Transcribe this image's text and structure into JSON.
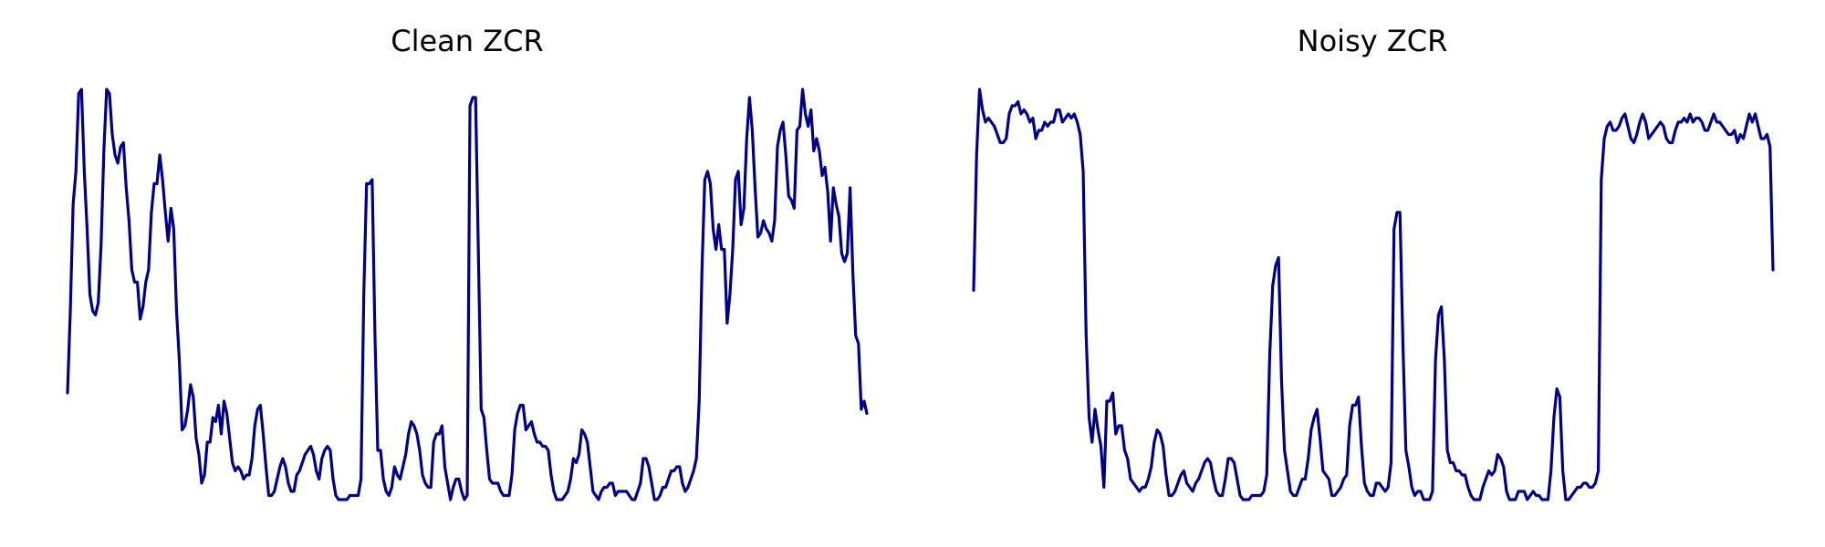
{
  "chart_data": [
    {
      "type": "line",
      "title": "Clean ZCR",
      "xlabel": "",
      "ylabel": "",
      "grid": false,
      "axes_visible": false,
      "line_color": "#00008b",
      "ylim": [
        0.0,
        1.0
      ],
      "series": [
        {
          "values": [
            0.26,
            0.46,
            0.72,
            0.8,
            0.99,
            1.0,
            0.8,
            0.66,
            0.5,
            0.46,
            0.45,
            0.48,
            0.62,
            0.85,
            1.0,
            0.99,
            0.89,
            0.84,
            0.82,
            0.86,
            0.87,
            0.76,
            0.68,
            0.56,
            0.53,
            0.53,
            0.44,
            0.47,
            0.53,
            0.56,
            0.7,
            0.77,
            0.77,
            0.84,
            0.78,
            0.7,
            0.63,
            0.71,
            0.66,
            0.46,
            0.34,
            0.17,
            0.18,
            0.22,
            0.28,
            0.25,
            0.15,
            0.11,
            0.04,
            0.06,
            0.14,
            0.14,
            0.2,
            0.19,
            0.23,
            0.16,
            0.24,
            0.21,
            0.15,
            0.09,
            0.07,
            0.08,
            0.07,
            0.05,
            0.06,
            0.06,
            0.1,
            0.18,
            0.22,
            0.23,
            0.16,
            0.08,
            0.01,
            0.01,
            0.02,
            0.05,
            0.08,
            0.1,
            0.08,
            0.04,
            0.02,
            0.02,
            0.06,
            0.07,
            0.09,
            0.11,
            0.12,
            0.13,
            0.11,
            0.07,
            0.05,
            0.1,
            0.12,
            0.13,
            0.12,
            0.05,
            0.01,
            0.0,
            0.0,
            0.0,
            0.0,
            0.01,
            0.01,
            0.01,
            0.01,
            0.05,
            0.5,
            0.77,
            0.77,
            0.78,
            0.4,
            0.12,
            0.12,
            0.05,
            0.02,
            0.01,
            0.03,
            0.08,
            0.06,
            0.05,
            0.08,
            0.11,
            0.16,
            0.19,
            0.18,
            0.16,
            0.12,
            0.06,
            0.04,
            0.03,
            0.03,
            0.14,
            0.16,
            0.16,
            0.18,
            0.08,
            0.04,
            0.0,
            0.03,
            0.05,
            0.05,
            0.02,
            0.0,
            0.01,
            0.96,
            0.98,
            0.98,
            0.6,
            0.22,
            0.2,
            0.12,
            0.05,
            0.04,
            0.04,
            0.04,
            0.02,
            0.01,
            0.01,
            0.01,
            0.06,
            0.17,
            0.21,
            0.23,
            0.23,
            0.17,
            0.18,
            0.19,
            0.16,
            0.14,
            0.14,
            0.13,
            0.13,
            0.12,
            0.06,
            0.02,
            0.0,
            0.0,
            0.0,
            0.01,
            0.02,
            0.05,
            0.1,
            0.09,
            0.11,
            0.17,
            0.16,
            0.14,
            0.08,
            0.02,
            0.01,
            0.0,
            0.02,
            0.03,
            0.03,
            0.04,
            0.04,
            0.01,
            0.02,
            0.02,
            0.02,
            0.02,
            0.01,
            0.0,
            0.0,
            0.02,
            0.04,
            0.1,
            0.1,
            0.08,
            0.04,
            0.0,
            0.0,
            0.01,
            0.03,
            0.03,
            0.05,
            0.07,
            0.07,
            0.08,
            0.08,
            0.04,
            0.02,
            0.03,
            0.05,
            0.07,
            0.1,
            0.24,
            0.56,
            0.78,
            0.8,
            0.77,
            0.66,
            0.61,
            0.67,
            0.61,
            0.61,
            0.43,
            0.5,
            0.61,
            0.78,
            0.8,
            0.67,
            0.71,
            0.88,
            0.98,
            0.9,
            0.76,
            0.64,
            0.65,
            0.68,
            0.66,
            0.65,
            0.63,
            0.68,
            0.86,
            0.9,
            0.92,
            0.84,
            0.74,
            0.73,
            0.71,
            0.9,
            0.91,
            1.0,
            0.94,
            0.91,
            0.95,
            0.85,
            0.88,
            0.85,
            0.79,
            0.81,
            0.75,
            0.63,
            0.76,
            0.72,
            0.69,
            0.6,
            0.58,
            0.6,
            0.76,
            0.55,
            0.4,
            0.38,
            0.22,
            0.24,
            0.21
          ]
        }
      ]
    },
    {
      "type": "line",
      "title": "Noisy ZCR",
      "xlabel": "",
      "ylabel": "",
      "grid": false,
      "axes_visible": false,
      "line_color": "#00008b",
      "ylim": [
        0.0,
        1.0
      ],
      "series": [
        {
          "values": [
            0.51,
            0.84,
            1.0,
            0.95,
            0.92,
            0.93,
            0.92,
            0.91,
            0.89,
            0.87,
            0.87,
            0.88,
            0.94,
            0.96,
            0.96,
            0.97,
            0.94,
            0.95,
            0.94,
            0.92,
            0.93,
            0.88,
            0.9,
            0.9,
            0.92,
            0.91,
            0.92,
            0.92,
            0.95,
            0.95,
            0.92,
            0.93,
            0.94,
            0.93,
            0.94,
            0.92,
            0.89,
            0.8,
            0.4,
            0.2,
            0.14,
            0.22,
            0.17,
            0.13,
            0.03,
            0.24,
            0.24,
            0.26,
            0.16,
            0.18,
            0.18,
            0.12,
            0.1,
            0.05,
            0.04,
            0.03,
            0.02,
            0.03,
            0.03,
            0.05,
            0.08,
            0.14,
            0.17,
            0.16,
            0.13,
            0.06,
            0.01,
            0.01,
            0.02,
            0.04,
            0.06,
            0.07,
            0.04,
            0.03,
            0.02,
            0.04,
            0.05,
            0.07,
            0.09,
            0.1,
            0.09,
            0.05,
            0.02,
            0.01,
            0.01,
            0.05,
            0.1,
            0.1,
            0.09,
            0.05,
            0.01,
            0.0,
            0.0,
            0.0,
            0.01,
            0.01,
            0.01,
            0.01,
            0.02,
            0.06,
            0.35,
            0.52,
            0.57,
            0.59,
            0.29,
            0.12,
            0.07,
            0.02,
            0.01,
            0.01,
            0.03,
            0.05,
            0.05,
            0.1,
            0.17,
            0.2,
            0.22,
            0.15,
            0.07,
            0.06,
            0.05,
            0.01,
            0.01,
            0.02,
            0.03,
            0.05,
            0.06,
            0.18,
            0.23,
            0.23,
            0.25,
            0.13,
            0.04,
            0.02,
            0.01,
            0.01,
            0.04,
            0.04,
            0.03,
            0.02,
            0.03,
            0.09,
            0.66,
            0.7,
            0.7,
            0.38,
            0.12,
            0.08,
            0.03,
            0.01,
            0.02,
            0.02,
            0.0,
            0.0,
            0.0,
            0.02,
            0.34,
            0.45,
            0.47,
            0.34,
            0.12,
            0.09,
            0.09,
            0.07,
            0.07,
            0.06,
            0.06,
            0.03,
            0.01,
            0.0,
            0.0,
            0.0,
            0.03,
            0.05,
            0.07,
            0.06,
            0.07,
            0.11,
            0.1,
            0.08,
            0.02,
            0.0,
            0.0,
            0.0,
            0.02,
            0.02,
            0.02,
            0.0,
            0.01,
            0.02,
            0.01,
            0.01,
            0.0,
            0.0,
            0.0,
            0.07,
            0.2,
            0.27,
            0.25,
            0.07,
            0.0,
            0.0,
            0.01,
            0.02,
            0.03,
            0.03,
            0.04,
            0.04,
            0.03,
            0.03,
            0.04,
            0.07,
            0.78,
            0.88,
            0.91,
            0.92,
            0.9,
            0.9,
            0.91,
            0.93,
            0.94,
            0.91,
            0.88,
            0.87,
            0.89,
            0.92,
            0.94,
            0.92,
            0.88,
            0.89,
            0.9,
            0.91,
            0.92,
            0.91,
            0.88,
            0.87,
            0.87,
            0.9,
            0.92,
            0.92,
            0.93,
            0.92,
            0.94,
            0.92,
            0.93,
            0.93,
            0.92,
            0.9,
            0.9,
            0.92,
            0.94,
            0.92,
            0.92,
            0.91,
            0.9,
            0.89,
            0.89,
            0.9,
            0.87,
            0.89,
            0.88,
            0.91,
            0.94,
            0.92,
            0.94,
            0.91,
            0.88,
            0.88,
            0.89,
            0.86,
            0.56
          ]
        }
      ]
    }
  ]
}
